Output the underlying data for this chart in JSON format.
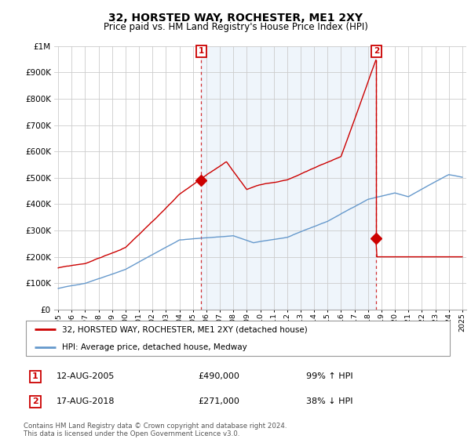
{
  "title": "32, HORSTED WAY, ROCHESTER, ME1 2XY",
  "subtitle": "Price paid vs. HM Land Registry's House Price Index (HPI)",
  "legend_line1": "32, HORSTED WAY, ROCHESTER, ME1 2XY (detached house)",
  "legend_line2": "HPI: Average price, detached house, Medway",
  "annotation1_date": "12-AUG-2005",
  "annotation1_price": "£490,000",
  "annotation1_hpi": "99% ↑ HPI",
  "annotation2_date": "17-AUG-2018",
  "annotation2_price": "£271,000",
  "annotation2_hpi": "38% ↓ HPI",
  "footer": "Contains HM Land Registry data © Crown copyright and database right 2024.\nThis data is licensed under the Open Government Licence v3.0.",
  "red_color": "#cc0000",
  "blue_color": "#6699cc",
  "shade_color": "#ddeeff",
  "ylim": [
    0,
    1000000
  ],
  "yticks": [
    0,
    100000,
    200000,
    300000,
    400000,
    500000,
    600000,
    700000,
    800000,
    900000,
    1000000
  ],
  "ytick_labels": [
    "£0",
    "£100K",
    "£200K",
    "£300K",
    "£400K",
    "£500K",
    "£600K",
    "£700K",
    "£800K",
    "£900K",
    "£1M"
  ],
  "sale1_x": 2005.62,
  "sale1_y": 490000,
  "sale2_x": 2018.62,
  "sale2_y": 271000,
  "vline1_x": 2005.62,
  "vline2_x": 2018.62,
  "xmin": 1995,
  "xmax": 2025
}
